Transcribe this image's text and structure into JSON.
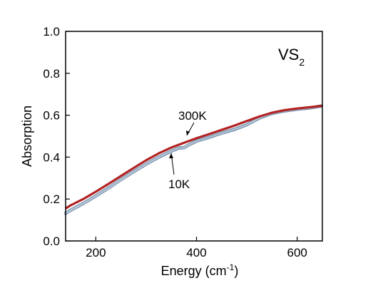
{
  "chart_data": {
    "type": "line",
    "title": "",
    "xlabel": "Energy (cm",
    "xlabel_sup": "-1",
    "xlabel_close": ")",
    "ylabel": "Absorption",
    "xlim": [
      140,
      650
    ],
    "ylim": [
      0.0,
      1.0
    ],
    "x_ticks": [
      200,
      400,
      600
    ],
    "x_tick_labels": [
      "200",
      "400",
      "600"
    ],
    "y_ticks": [
      0.0,
      0.2,
      0.4,
      0.6,
      0.8,
      1.0
    ],
    "y_tick_labels": [
      "0.0",
      "0.2",
      "0.4",
      "0.6",
      "0.8",
      "1.0"
    ],
    "grid": false,
    "compound_label": {
      "base": "VS",
      "sub": "2"
    },
    "series": [
      {
        "name": "300K",
        "color": "#b22222",
        "style": "thick-line",
        "x": [
          140,
          150,
          175,
          200,
          225,
          250,
          275,
          300,
          325,
          350,
          375,
          400,
          425,
          450,
          475,
          500,
          525,
          550,
          575,
          600,
          625,
          650
        ],
        "y": [
          0.155,
          0.17,
          0.2,
          0.235,
          0.272,
          0.31,
          0.348,
          0.385,
          0.418,
          0.446,
          0.468,
          0.49,
          0.51,
          0.53,
          0.55,
          0.572,
          0.594,
          0.612,
          0.624,
          0.632,
          0.638,
          0.645
        ]
      },
      {
        "name": "10K",
        "color": "#6a8aa8",
        "style": "open-circles",
        "x": [
          140,
          150,
          175,
          200,
          225,
          250,
          275,
          300,
          325,
          350,
          365,
          375,
          385,
          400,
          425,
          450,
          475,
          500,
          525,
          550,
          575,
          600,
          625,
          650
        ],
        "y": [
          0.135,
          0.15,
          0.182,
          0.218,
          0.256,
          0.296,
          0.334,
          0.37,
          0.403,
          0.432,
          0.447,
          0.448,
          0.462,
          0.48,
          0.498,
          0.518,
          0.535,
          0.558,
          0.59,
          0.612,
          0.624,
          0.632,
          0.638,
          0.648
        ]
      }
    ],
    "annotations": [
      {
        "text": "300K",
        "series": "300K"
      },
      {
        "text": "10K",
        "series": "10K"
      }
    ]
  }
}
